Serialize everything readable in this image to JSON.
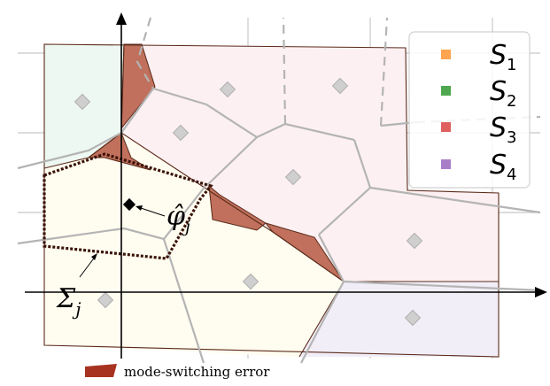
{
  "colors": {
    "S1": "#ffa54f",
    "S2": "#4fa84f",
    "S3": "#e06060",
    "S4": "#a97ec8",
    "region_S1": "#fffdf0",
    "region_S2": "#eef8f2",
    "region_S3": "#fdf0f2",
    "region_S4": "#f1eef8",
    "error_fill": "#c0705c",
    "boundary": "#5a2a1a",
    "voronoi": "#b4b4b4",
    "grid": "#c8c8c8",
    "axis": "#000000",
    "legend_swatch": "#a83220"
  },
  "legend": {
    "items": [
      {
        "base": "S",
        "sub": "1",
        "color_key": "S1"
      },
      {
        "base": "S",
        "sub": "2",
        "color_key": "S2"
      },
      {
        "base": "S",
        "sub": "3",
        "color_key": "S3"
      },
      {
        "base": "S",
        "sub": "4",
        "color_key": "S4"
      }
    ]
  },
  "labels": {
    "phi_hat": "φ̂",
    "phi_sub": "j",
    "sigma": "Σ",
    "sigma_sub": "j",
    "error_caption": "mode-switching error"
  }
}
